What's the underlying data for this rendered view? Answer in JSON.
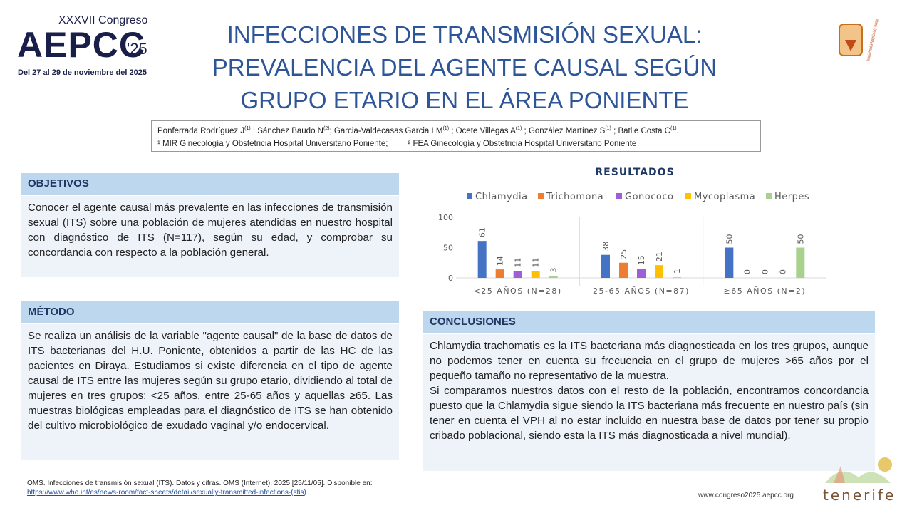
{
  "logo_left": {
    "edition": "XXXVII Congreso",
    "name": "AEPCC",
    "year": "'25",
    "dates": "Del 27 al 29 de noviembre del 2025"
  },
  "logo_right": {
    "text": "Asociación Española de Patología Cervical y Colposcopia"
  },
  "title": [
    "INFECCIONES DE TRANSMISIÓN SEXUAL:",
    "PREVALENCIA DEL AGENTE CAUSAL SEGÚN",
    "GRUPO ETARIO EN EL ÁREA PONIENTE"
  ],
  "authors": [
    {
      "text": "Ponferrada Rodríguez J"
    },
    {
      "sup": "(1)"
    },
    {
      "text": " ; Sánchez Baudo N"
    },
    {
      "sup": "(2)"
    },
    {
      "text": "; Garcia-Valdecasas Garcia LM"
    },
    {
      "sup": "(1)"
    },
    {
      "text": " ; Ocete Villegas A"
    },
    {
      "sup": "(1)"
    },
    {
      "text": " ; González Martínez S"
    },
    {
      "sup": "(1)"
    },
    {
      "text": " ; Batlle Costa C"
    },
    {
      "sup": "(1)"
    },
    {
      "text": "."
    }
  ],
  "affiliations": [
    "¹ MIR Ginecología y Obstetricia Hospital Universitario Poniente;",
    "² FEA Ginecología y Obstetricia Hospital Universitario Poniente"
  ],
  "objetivos": {
    "heading": "OBJETIVOS",
    "text": "Conocer el agente causal más prevalente en las infecciones de transmisión sexual (ITS) sobre una población de mujeres atendidas en nuestro hospital con diagnóstico de ITS (N=117), según su edad, y comprobar su concordancia con respecto a la población general."
  },
  "metodo": {
    "heading": "MÉTODO",
    "text": "Se realiza un análisis de la variable \"agente causal\" de la base de datos de ITS bacterianas del H.U. Poniente, obtenidos a partir de las HC de las pacientes en Diraya. Estudiamos si existe diferencia en el tipo de agente causal de ITS entre las mujeres según su grupo etario, dividiendo al total de mujeres en tres grupos: <25 años, entre 25-65 años y aquellas ≥65. Las muestras biológicas empleadas para el diagnóstico de ITS se han obtenido del cultivo microbiológico de exudado vaginal y/o endocervical."
  },
  "conclusiones": {
    "heading": "CONCLUSIONES",
    "paragraphs": [
      "Chlamydia trachomatis es la ITS bacteriana más diagnosticada en los tres grupos, aunque no podemos tener en cuenta su frecuencia en el grupo de mujeres >65 años por el pequeño tamaño no representativo de la muestra.",
      "Si comparamos nuestros datos con el resto de la población, encontramos concordancia puesto que la Chlamydia sigue siendo la ITS bacteriana más frecuente en nuestro país (sin tener en cuenta el VPH al no estar incluido en nuestra base de datos por tener su propio cribado poblacional, siendo esta la ITS más diagnosticada a nivel mundial)."
    ]
  },
  "reference": {
    "text": "OMS. Infecciones de transmisión sexual (ITS). Datos y cifras. OMS (Internet). 2025 [25/11/05]. Disponible en: ",
    "link": "https://www.who.int/es/news-room/fact-sheets/detail/sexually-transmitted-infections-(stis)"
  },
  "footer": {
    "website": "www.congreso2025.aepcc.org",
    "brand": "tenerife"
  },
  "chart_data": {
    "type": "bar",
    "title": "RESULTADOS",
    "categories": [
      "<25 AÑOS (N=28)",
      "25-65 AÑOS (N=87)",
      "≥65 AÑOS (N=2)"
    ],
    "series": [
      {
        "name": "Chlamydia",
        "color": "#4472c4",
        "values": [
          61,
          38,
          50
        ]
      },
      {
        "name": "Trichomona",
        "color": "#ed7d31",
        "values": [
          14,
          25,
          0
        ]
      },
      {
        "name": "Gonococo",
        "color": "#9e5fd6",
        "values": [
          11,
          15,
          0
        ]
      },
      {
        "name": "Mycoplasma",
        "color": "#ffc000",
        "values": [
          11,
          21,
          0
        ]
      },
      {
        "name": "Herpes",
        "color": "#a9d18e",
        "values": [
          3,
          1,
          50
        ]
      }
    ],
    "ylim": [
      0,
      100
    ],
    "yticks": [
      0,
      50,
      100
    ],
    "legend": "top",
    "data_labels": true
  }
}
